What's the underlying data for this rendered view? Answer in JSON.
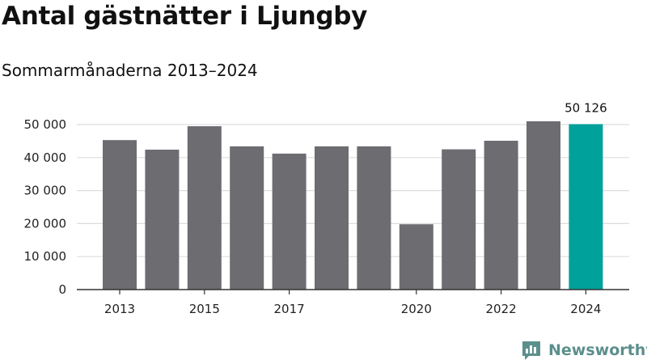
{
  "chart_data": {
    "type": "bar",
    "title": "Antal gästnätter i Ljungby",
    "subtitle": "Sommarmånaderna 2013–2024",
    "categories": [
      "2013",
      "2014",
      "2015",
      "2016",
      "2017",
      "2018",
      "2019",
      "2020",
      "2021",
      "2022",
      "2023",
      "2024"
    ],
    "values": [
      45300,
      42400,
      49500,
      43400,
      41200,
      43400,
      43400,
      19800,
      42500,
      45100,
      51000,
      50126
    ],
    "x_tick_labels": [
      "2013",
      "2015",
      "2017",
      "2020",
      "2022",
      "2024"
    ],
    "y_ticks": [
      0,
      10000,
      20000,
      30000,
      40000,
      50000
    ],
    "y_tick_labels": [
      "0",
      "10 000",
      "20 000",
      "30 000",
      "40 000",
      "50 000"
    ],
    "ylim": [
      0,
      50000
    ],
    "highlight_index": 11,
    "highlight_label": "50 126",
    "grid": true,
    "colors": {
      "bar": "#6d6c71",
      "highlight": "#00a19a",
      "grid": "#dddddd",
      "axis": "#333333"
    }
  },
  "branding": {
    "logo_text": "Newsworthy",
    "logo_icon": "bar-chart-speech-bubble-icon"
  }
}
